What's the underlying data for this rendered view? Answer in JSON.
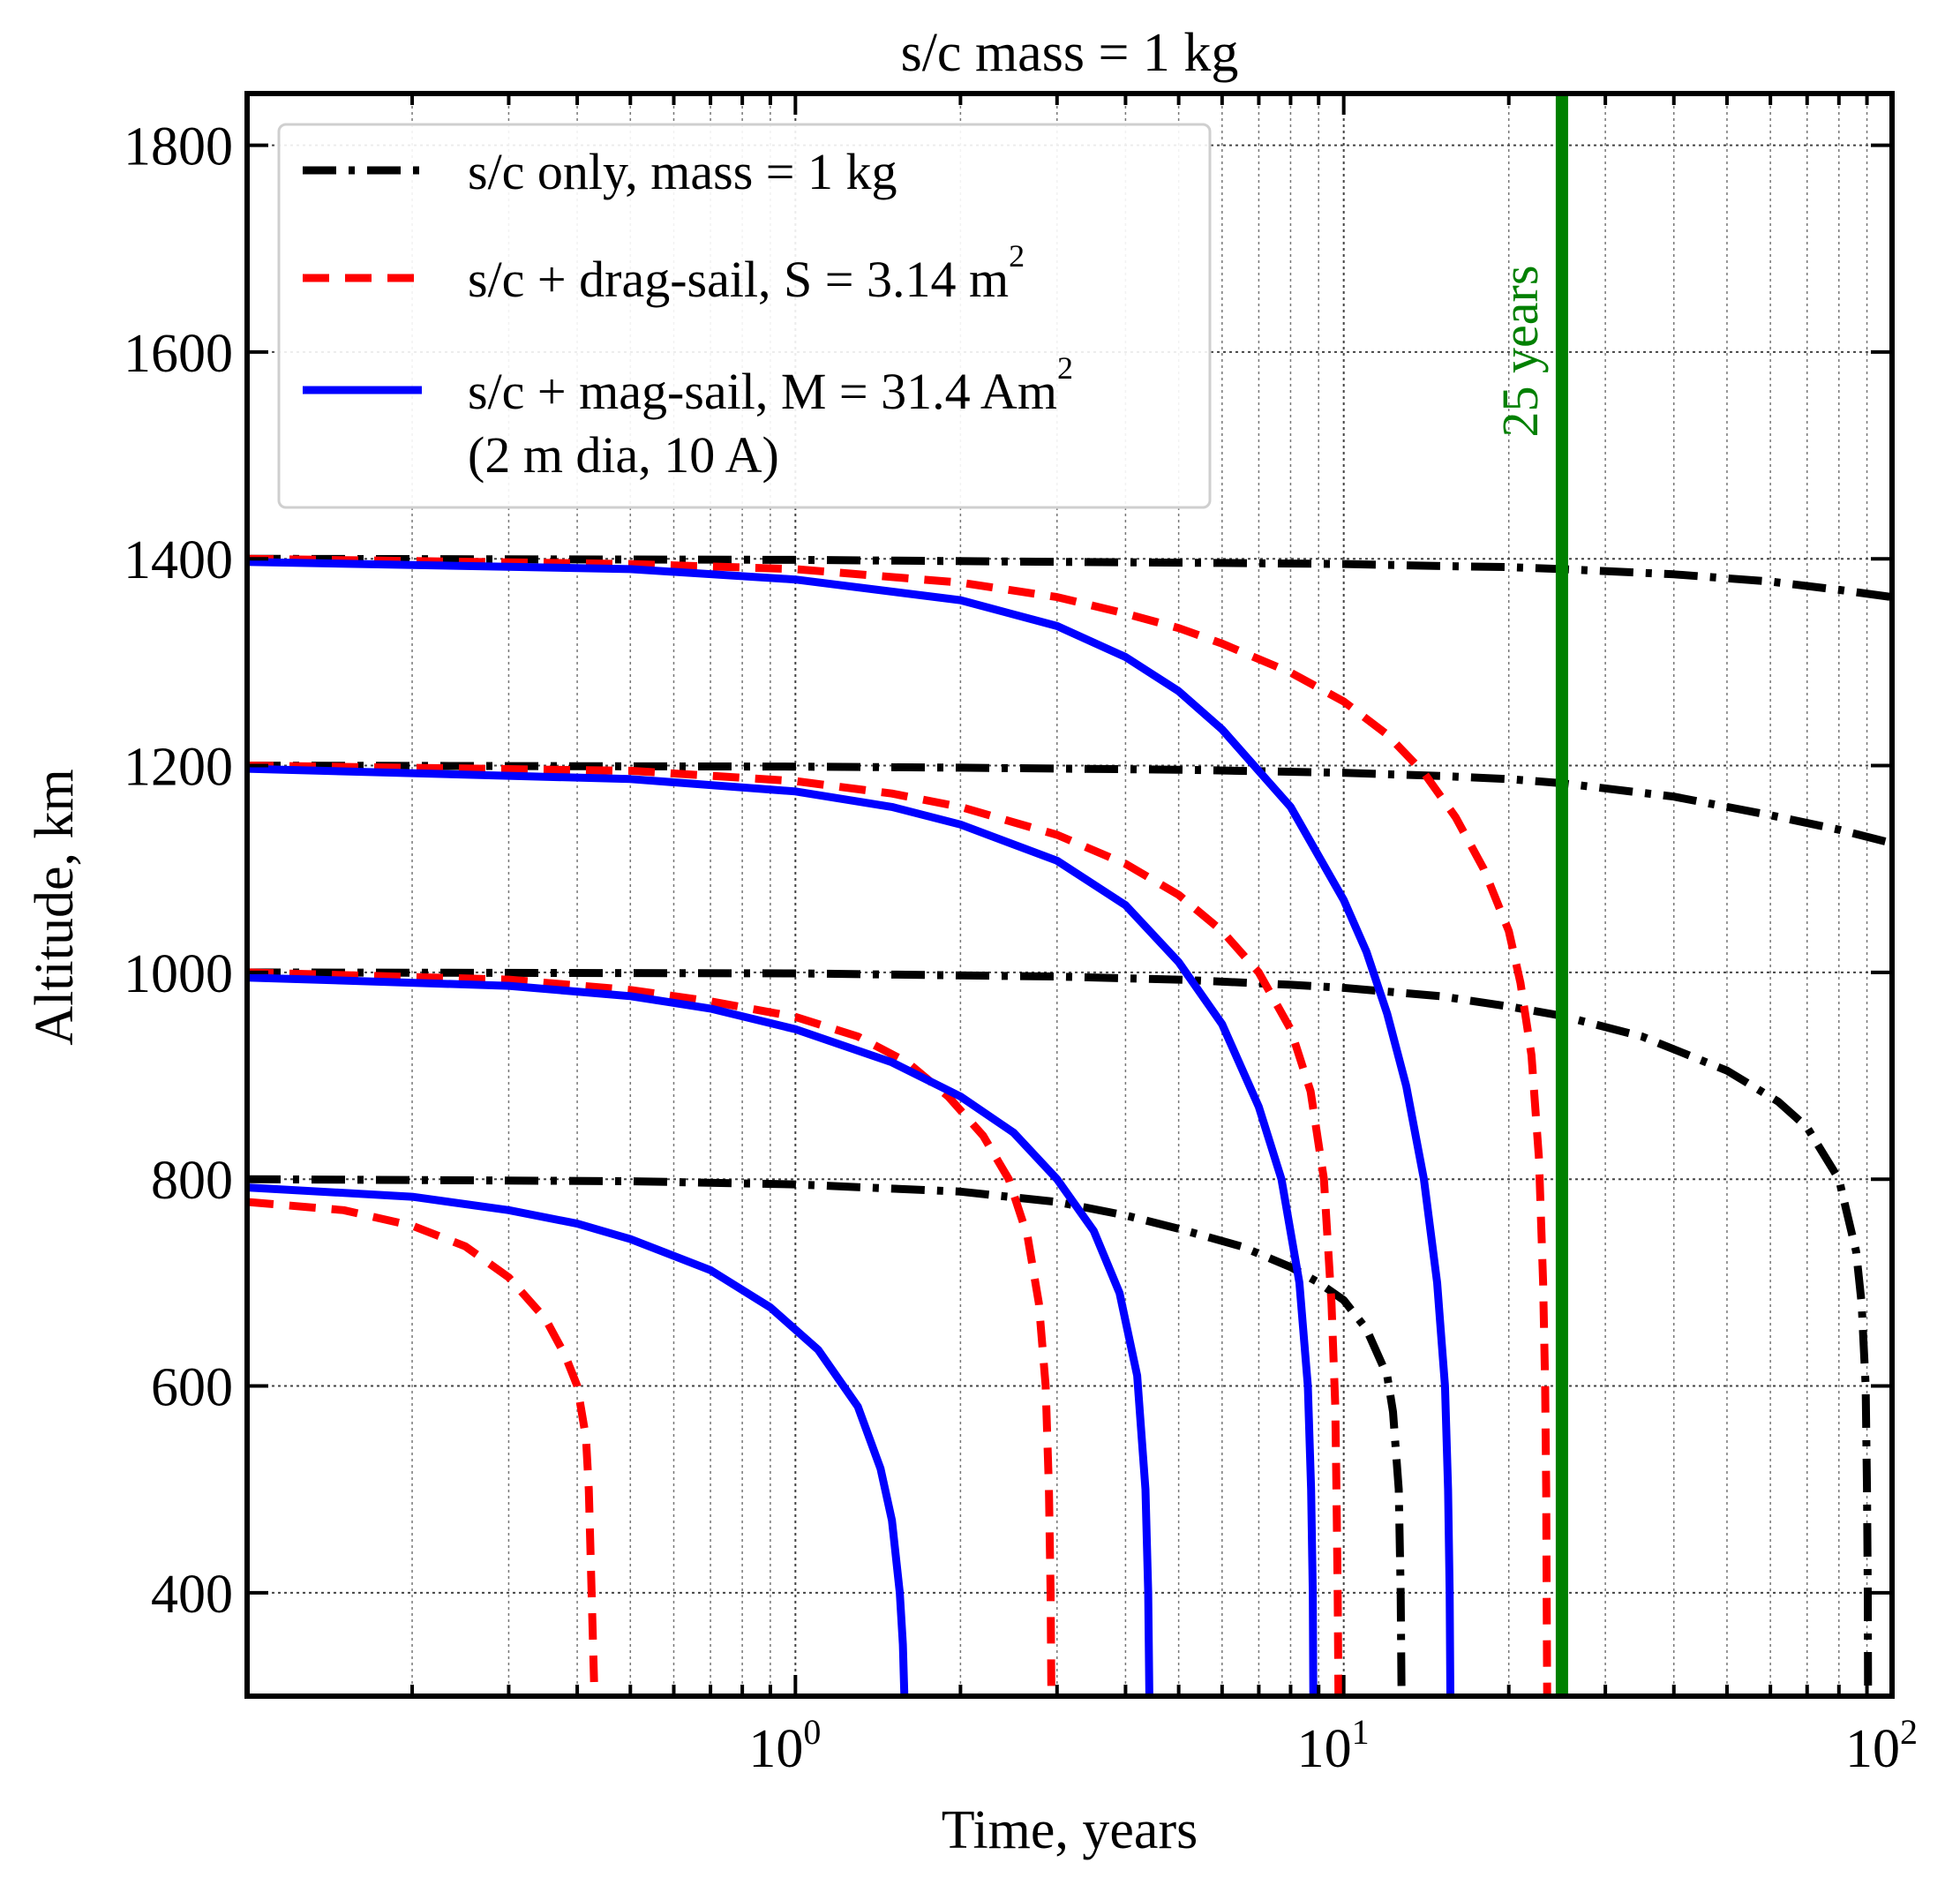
{
  "chart_data": {
    "type": "line",
    "title": "s/c mass = 1 kg",
    "xlabel": "Time, years",
    "ylabel": "Altitude, km",
    "xscale": "log",
    "xlim": [
      0.1,
      100
    ],
    "ylim": [
      300,
      1850
    ],
    "xticks": [
      {
        "base": "10",
        "exp": "0",
        "value": 1
      },
      {
        "base": "10",
        "exp": "1",
        "value": 10
      },
      {
        "base": "10",
        "exp": "2",
        "value": 100
      }
    ],
    "yticks": [
      {
        "label": "400",
        "value": 400
      },
      {
        "label": "600",
        "value": 600
      },
      {
        "label": "800",
        "value": 800
      },
      {
        "label": "1000",
        "value": 1000
      },
      {
        "label": "1200",
        "value": 1200
      },
      {
        "label": "1400",
        "value": 1400
      },
      {
        "label": "1600",
        "value": 1600
      },
      {
        "label": "1800",
        "value": 1800
      }
    ],
    "grid": true,
    "legend_position": "top-left",
    "legend": [
      {
        "key": "sc_only",
        "text": "s/c only, mass = 1 kg",
        "sup": "",
        "line2": "",
        "color": "#000000",
        "style": "dashdot"
      },
      {
        "key": "drag",
        "text": "s/c + drag-sail, S = 3.14 m",
        "sup": "2",
        "line2": "",
        "color": "#ff0000",
        "style": "dashed"
      },
      {
        "key": "mag",
        "text": "s/c + mag-sail,  M = 31.4 Am",
        "sup": "2",
        "line2": " (2 m dia, 10 A)",
        "color": "#0000ff",
        "style": "solid"
      }
    ],
    "annotation": {
      "text": "25 years",
      "x": 25,
      "color": "#008000"
    },
    "series": [
      {
        "group": "sc_only",
        "color": "#000000",
        "style": "dashdot",
        "initial_altitude": 1400,
        "points": [
          [
            0.1,
            1400
          ],
          [
            1,
            1399
          ],
          [
            3,
            1397
          ],
          [
            6,
            1396
          ],
          [
            10,
            1395
          ],
          [
            15,
            1393
          ],
          [
            20,
            1392
          ],
          [
            25,
            1390
          ],
          [
            40,
            1385
          ],
          [
            60,
            1378
          ],
          [
            80,
            1370
          ],
          [
            100,
            1363
          ]
        ]
      },
      {
        "group": "sc_only",
        "color": "#000000",
        "style": "dashdot",
        "initial_altitude": 1200,
        "points": [
          [
            0.1,
            1200
          ],
          [
            1,
            1199
          ],
          [
            2,
            1198
          ],
          [
            5,
            1196
          ],
          [
            10,
            1193
          ],
          [
            15,
            1190
          ],
          [
            20,
            1187
          ],
          [
            25,
            1183
          ],
          [
            40,
            1170
          ],
          [
            60,
            1152
          ],
          [
            80,
            1138
          ],
          [
            100,
            1125
          ]
        ]
      },
      {
        "group": "sc_only",
        "color": "#000000",
        "style": "dashdot",
        "initial_altitude": 1000,
        "points": [
          [
            0.1,
            1000
          ],
          [
            1,
            999
          ],
          [
            3,
            996
          ],
          [
            5,
            993
          ],
          [
            8,
            988
          ],
          [
            10,
            985
          ],
          [
            15,
            977
          ],
          [
            20,
            967
          ],
          [
            25,
            958
          ],
          [
            35,
            938
          ],
          [
            50,
            905
          ],
          [
            62,
            875
          ],
          [
            70,
            850
          ],
          [
            80,
            800
          ],
          [
            86,
            730
          ],
          [
            88,
            680
          ],
          [
            89.5,
            600
          ],
          [
            90,
            500
          ],
          [
            90.3,
            400
          ],
          [
            90.4,
            300
          ]
        ]
      },
      {
        "group": "sc_only",
        "color": "#000000",
        "style": "dashdot",
        "initial_altitude": 800,
        "points": [
          [
            0.1,
            800
          ],
          [
            0.5,
            798
          ],
          [
            1,
            795
          ],
          [
            2,
            788
          ],
          [
            3,
            778
          ],
          [
            4,
            765
          ],
          [
            5,
            752
          ],
          [
            6.5,
            735
          ],
          [
            8,
            715
          ],
          [
            9,
            700
          ],
          [
            10,
            683
          ],
          [
            11,
            655
          ],
          [
            12,
            610
          ],
          [
            12.3,
            575
          ],
          [
            12.6,
            500
          ],
          [
            12.7,
            400
          ],
          [
            12.75,
            300
          ]
        ]
      },
      {
        "group": "drag",
        "color": "#ff0000",
        "style": "dashed",
        "initial_altitude": 1400,
        "points": [
          [
            0.1,
            1400
          ],
          [
            0.5,
            1395
          ],
          [
            1,
            1390
          ],
          [
            2,
            1377
          ],
          [
            3,
            1363
          ],
          [
            4,
            1347
          ],
          [
            5,
            1333
          ],
          [
            6,
            1318
          ],
          [
            8,
            1290
          ],
          [
            10,
            1262
          ],
          [
            12,
            1230
          ],
          [
            14,
            1193
          ],
          [
            16,
            1150
          ],
          [
            18,
            1100
          ],
          [
            20,
            1040
          ],
          [
            21,
            990
          ],
          [
            22,
            920
          ],
          [
            22.7,
            820
          ],
          [
            23.1,
            700
          ],
          [
            23.3,
            600
          ],
          [
            23.4,
            500
          ],
          [
            23.45,
            400
          ],
          [
            23.5,
            300
          ]
        ]
      },
      {
        "group": "drag",
        "color": "#ff0000",
        "style": "dashed",
        "initial_altitude": 1200,
        "points": [
          [
            0.1,
            1200
          ],
          [
            0.5,
            1195
          ],
          [
            1,
            1185
          ],
          [
            1.5,
            1173
          ],
          [
            2,
            1160
          ],
          [
            3,
            1133
          ],
          [
            4,
            1105
          ],
          [
            5,
            1075
          ],
          [
            6,
            1040
          ],
          [
            7,
            1000
          ],
          [
            8,
            945
          ],
          [
            8.7,
            885
          ],
          [
            9.2,
            800
          ],
          [
            9.5,
            680
          ],
          [
            9.65,
            580
          ],
          [
            9.7,
            500
          ],
          [
            9.75,
            400
          ],
          [
            9.78,
            300
          ]
        ]
      },
      {
        "group": "drag",
        "color": "#ff0000",
        "style": "dashed",
        "initial_altitude": 1000,
        "points": [
          [
            0.1,
            1000
          ],
          [
            0.3,
            993
          ],
          [
            0.5,
            983
          ],
          [
            0.7,
            972
          ],
          [
            1,
            957
          ],
          [
            1.3,
            938
          ],
          [
            1.6,
            913
          ],
          [
            1.9,
            880
          ],
          [
            2.2,
            842
          ],
          [
            2.45,
            800
          ],
          [
            2.65,
            745
          ],
          [
            2.78,
            680
          ],
          [
            2.86,
            600
          ],
          [
            2.9,
            500
          ],
          [
            2.92,
            400
          ],
          [
            2.93,
            300
          ]
        ]
      },
      {
        "group": "drag",
        "color": "#ff0000",
        "style": "dashed",
        "initial_altitude": 800,
        "points": [
          [
            0.1,
            778
          ],
          [
            0.15,
            770
          ],
          [
            0.2,
            755
          ],
          [
            0.25,
            735
          ],
          [
            0.3,
            705
          ],
          [
            0.35,
            665
          ],
          [
            0.38,
            630
          ],
          [
            0.4,
            600
          ],
          [
            0.415,
            550
          ],
          [
            0.42,
            500
          ],
          [
            0.425,
            400
          ],
          [
            0.43,
            300
          ]
        ]
      },
      {
        "group": "mag",
        "color": "#0000ff",
        "style": "solid",
        "initial_altitude": 1400,
        "points": [
          [
            0.1,
            1397
          ],
          [
            0.5,
            1390
          ],
          [
            1,
            1380
          ],
          [
            2,
            1360
          ],
          [
            3,
            1335
          ],
          [
            4,
            1305
          ],
          [
            5,
            1272
          ],
          [
            6,
            1235
          ],
          [
            8,
            1160
          ],
          [
            10,
            1070
          ],
          [
            11,
            1020
          ],
          [
            12,
            960
          ],
          [
            13,
            890
          ],
          [
            14,
            800
          ],
          [
            14.8,
            700
          ],
          [
            15.3,
            600
          ],
          [
            15.5,
            500
          ],
          [
            15.6,
            400
          ],
          [
            15.65,
            300
          ]
        ]
      },
      {
        "group": "mag",
        "color": "#0000ff",
        "style": "solid",
        "initial_altitude": 1200,
        "points": [
          [
            0.1,
            1197
          ],
          [
            0.5,
            1187
          ],
          [
            1,
            1175
          ],
          [
            1.5,
            1160
          ],
          [
            2,
            1143
          ],
          [
            3,
            1108
          ],
          [
            4,
            1065
          ],
          [
            5,
            1010
          ],
          [
            6,
            950
          ],
          [
            7,
            870
          ],
          [
            7.7,
            800
          ],
          [
            8.3,
            700
          ],
          [
            8.6,
            600
          ],
          [
            8.72,
            500
          ],
          [
            8.78,
            400
          ],
          [
            8.8,
            300
          ]
        ]
      },
      {
        "group": "mag",
        "color": "#0000ff",
        "style": "solid",
        "initial_altitude": 1000,
        "points": [
          [
            0.1,
            995
          ],
          [
            0.3,
            987
          ],
          [
            0.5,
            977
          ],
          [
            0.7,
            965
          ],
          [
            1,
            945
          ],
          [
            1.5,
            913
          ],
          [
            2,
            880
          ],
          [
            2.5,
            845
          ],
          [
            3,
            800
          ],
          [
            3.5,
            750
          ],
          [
            3.9,
            690
          ],
          [
            4.2,
            610
          ],
          [
            4.35,
            500
          ],
          [
            4.4,
            400
          ],
          [
            4.42,
            300
          ]
        ]
      },
      {
        "group": "mag",
        "color": "#0000ff",
        "style": "solid",
        "initial_altitude": 800,
        "points": [
          [
            0.1,
            792
          ],
          [
            0.2,
            783
          ],
          [
            0.3,
            770
          ],
          [
            0.4,
            757
          ],
          [
            0.5,
            742
          ],
          [
            0.7,
            712
          ],
          [
            0.9,
            676
          ],
          [
            1.1,
            635
          ],
          [
            1.3,
            580
          ],
          [
            1.43,
            520
          ],
          [
            1.5,
            470
          ],
          [
            1.55,
            400
          ],
          [
            1.57,
            350
          ],
          [
            1.58,
            300
          ]
        ]
      }
    ]
  }
}
